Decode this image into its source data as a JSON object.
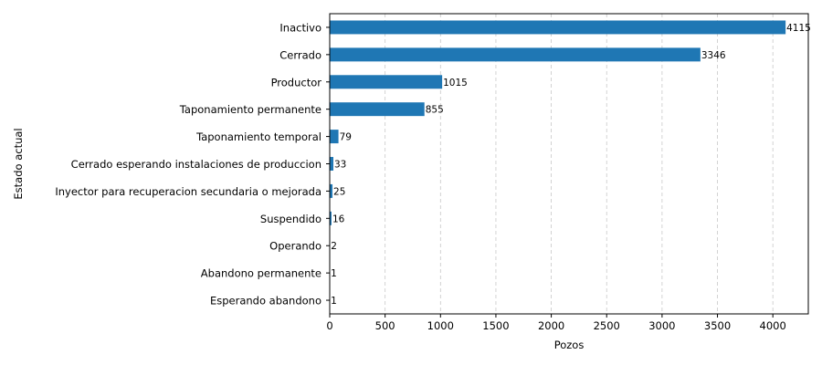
{
  "chart_data": {
    "type": "bar",
    "orientation": "horizontal",
    "categories": [
      "Inactivo",
      "Cerrado",
      "Productor",
      "Taponamiento permanente",
      "Taponamiento temporal",
      "Cerrado esperando instalaciones de produccion",
      "Inyector para recuperacion secundaria o mejorada",
      "Suspendido",
      "Operando",
      "Abandono permanente",
      "Esperando abandono"
    ],
    "values": [
      4115,
      3346,
      1015,
      855,
      79,
      33,
      25,
      16,
      2,
      1,
      1
    ],
    "xlabel": "Pozos",
    "ylabel": "Estado actual",
    "xlim": [
      0,
      4320
    ],
    "xticks": [
      0,
      500,
      1000,
      1500,
      2000,
      2500,
      3000,
      3500,
      4000
    ],
    "grid": "x-dashed",
    "bar_color": "#1f77b4",
    "grid_color": "#c8c8c8"
  }
}
